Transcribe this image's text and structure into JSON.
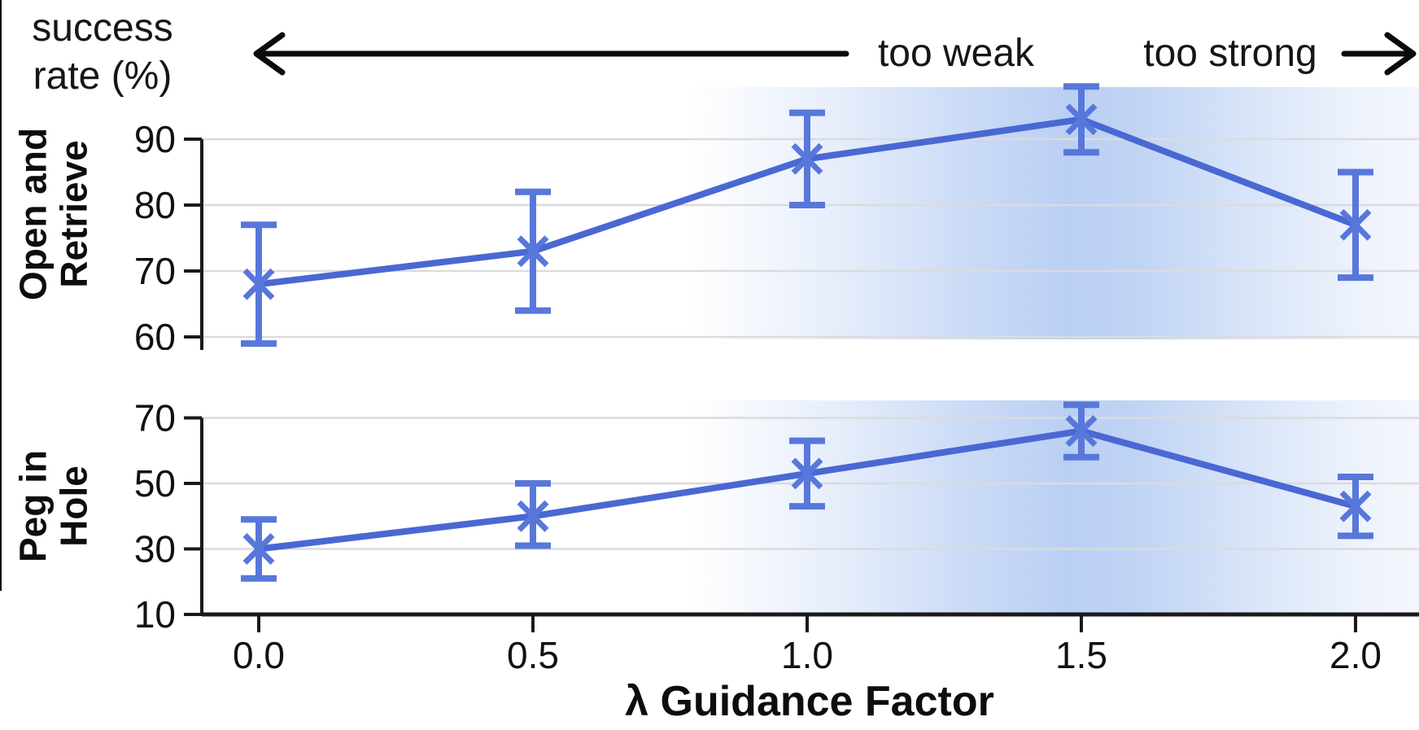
{
  "figure": {
    "shared_y_label": "success\nrate (%)",
    "annotations": {
      "left": "too weak",
      "right": "too strong"
    },
    "x_axis": {
      "title": "λ Guidance Factor",
      "tick_labels": [
        "0.0",
        "0.5",
        "1.0",
        "1.5",
        "2.0"
      ]
    }
  },
  "style": {
    "line_color": "#4a68d3",
    "marker_color": "#5777db",
    "grid_color": "#dbdbdb",
    "axis_color": "#1a1a1a",
    "band_color": "#aec7f1",
    "arrow_color": "#0b0b0b"
  },
  "chart_data": [
    {
      "type": "line",
      "title": "Open and\nRetrieve",
      "x": [
        0.0,
        0.5,
        1.0,
        1.5,
        2.0
      ],
      "series": [
        {
          "name": "success rate (%)",
          "values": [
            68,
            73,
            87,
            93,
            77
          ],
          "err_low": [
            59,
            64,
            80,
            88,
            69
          ],
          "err_high": [
            77,
            82,
            94,
            98,
            85
          ]
        }
      ],
      "yticks": [
        90,
        80,
        70,
        60
      ],
      "ylim": [
        56,
        100
      ],
      "xlim": [
        -0.1,
        2.12
      ],
      "grid": true,
      "legend": "none",
      "marker": "x",
      "shaded_region_note": "blue gradient band strongest near x=1.5"
    },
    {
      "type": "line",
      "title": "Peg in\nHole",
      "x": [
        0.0,
        0.5,
        1.0,
        1.5,
        2.0
      ],
      "series": [
        {
          "name": "success rate (%)",
          "values": [
            30,
            40,
            53,
            66,
            43
          ],
          "err_low": [
            21,
            31,
            43,
            58,
            34
          ],
          "err_high": [
            39,
            50,
            63,
            74,
            52
          ]
        }
      ],
      "yticks": [
        70,
        50,
        30,
        10
      ],
      "ylim": [
        10,
        78
      ],
      "xlim": [
        -0.1,
        2.12
      ],
      "grid": true,
      "legend": "none",
      "marker": "x",
      "shaded_region_note": "blue gradient band strongest near x=1.5"
    }
  ]
}
